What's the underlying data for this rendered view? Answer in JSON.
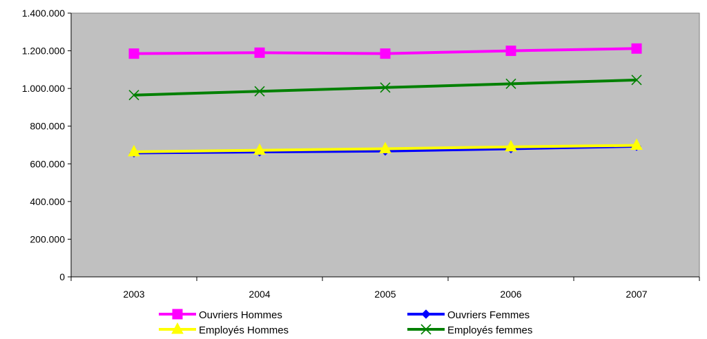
{
  "chart_data": {
    "type": "line",
    "title": "",
    "xlabel": "",
    "ylabel": "",
    "categories": [
      "2003",
      "2004",
      "2005",
      "2006",
      "2007"
    ],
    "ylim": [
      0,
      1400000
    ],
    "yticks": [
      0,
      200000,
      400000,
      600000,
      800000,
      1000000,
      1200000,
      1400000
    ],
    "ytick_labels": [
      "0",
      "200.000",
      "400.000",
      "600.000",
      "800.000",
      "1.000.000",
      "1.200.000",
      "1.400.000"
    ],
    "grid": false,
    "plot_background": "#c0c0c0",
    "legend_position": "bottom",
    "series": [
      {
        "name": "Ouvriers Hommes",
        "color": "#ff00ff",
        "marker": "square",
        "values": [
          1185000,
          1190000,
          1185000,
          1200000,
          1212000
        ]
      },
      {
        "name": "Ouvriers Femmes",
        "color": "#0000ff",
        "marker": "diamond",
        "values": [
          658000,
          663000,
          668000,
          680000,
          693000
        ]
      },
      {
        "name": "Employés Hommes",
        "color": "#ffff00",
        "marker": "triangle",
        "values": [
          664000,
          672000,
          680000,
          690000,
          698000
        ]
      },
      {
        "name": "Employés femmes",
        "color": "#008000",
        "marker": "x",
        "values": [
          965000,
          985000,
          1005000,
          1025000,
          1045000
        ]
      }
    ]
  }
}
